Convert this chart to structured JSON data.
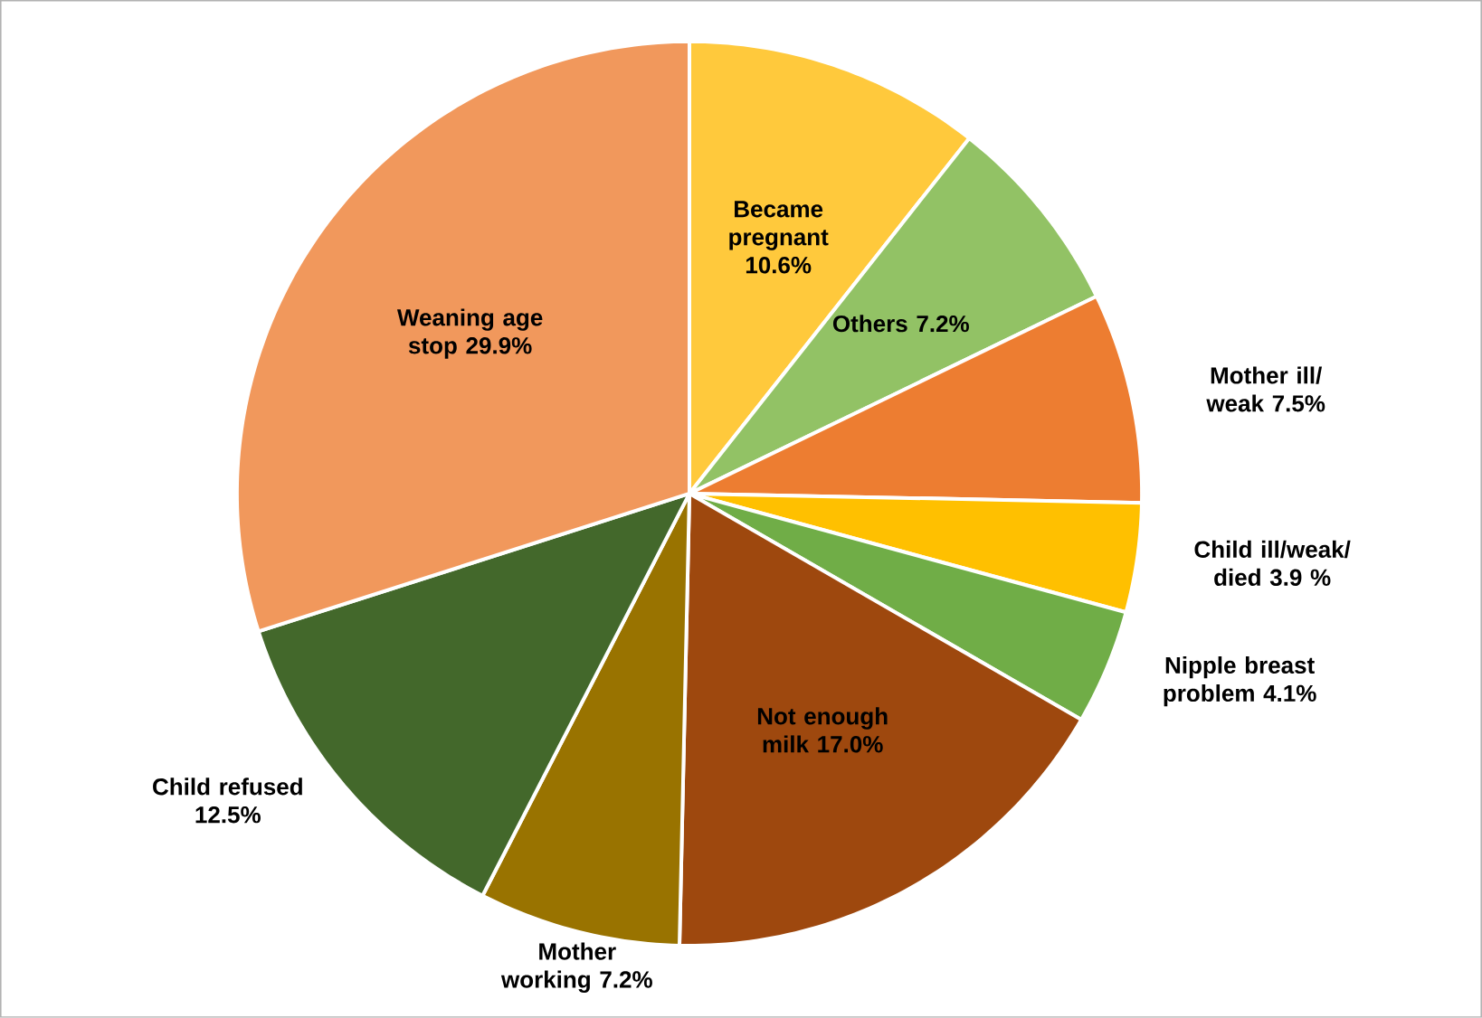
{
  "chart_data": {
    "type": "pie",
    "categories": [
      "Became pregnant",
      "Others",
      "Mother ill/ weak",
      "Child ill/weak/ died",
      "Nipple breast problem",
      "Not enough milk",
      "Mother working",
      "Child refused",
      "Weaning age stop"
    ],
    "values": [
      10.6,
      7.2,
      7.5,
      3.9,
      4.1,
      17.0,
      7.2,
      12.5,
      29.9
    ],
    "value_labels": [
      "10.6%",
      "7.2%",
      "7.5%",
      "3.9 %",
      "4.1%",
      "17.0%",
      "7.2%",
      "12.5%",
      "29.9%"
    ],
    "colors": [
      "#ffc93c",
      "#92c265",
      "#ed7d31",
      "#ffc000",
      "#70ad47",
      "#9e480e",
      "#997300",
      "#43682b",
      "#f1985c"
    ]
  }
}
